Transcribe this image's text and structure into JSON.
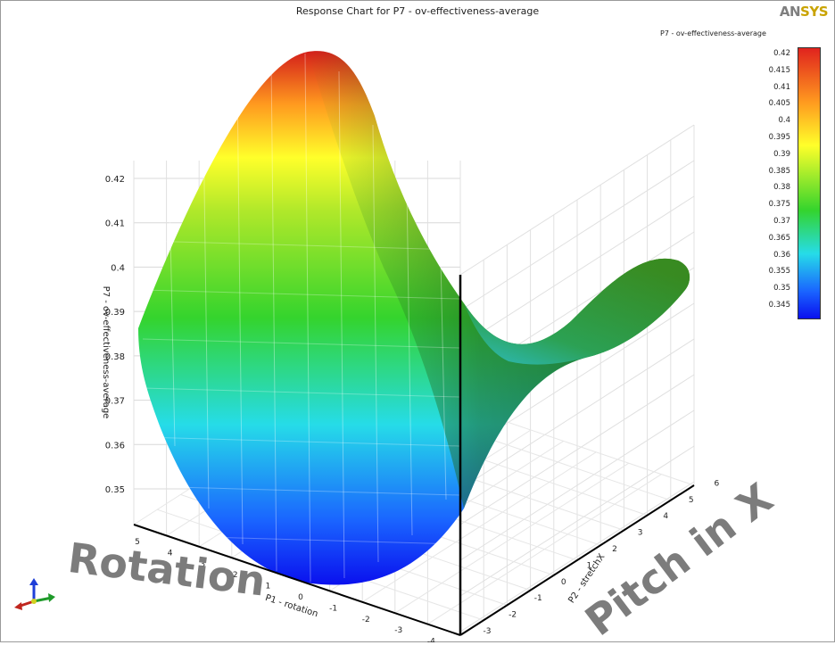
{
  "header": {
    "title": "Response Chart for P7 - ov-effectiveness-average",
    "logo_an": "AN",
    "logo_sys": "SYS"
  },
  "legend": {
    "title": "P7 - ov-effectiveness-average",
    "ticks": [
      "0.42",
      "0.415",
      "0.41",
      "0.405",
      "0.4",
      "0.395",
      "0.39",
      "0.385",
      "0.38",
      "0.375",
      "0.37",
      "0.365",
      "0.36",
      "0.355",
      "0.35",
      "0.345"
    ],
    "colors": [
      "#e0231e",
      "#ff9a1f",
      "#ffff2a",
      "#34d42d",
      "#26dce8",
      "#1a64ff",
      "#0a10ee"
    ]
  },
  "annotations": {
    "rotation": "Rotation",
    "pitch": "Pitch in X"
  },
  "chart_data": {
    "type": "surface",
    "title": "Response Chart for P7 - ov-effectiveness-average",
    "x_axis": {
      "label": "P1 - rotation",
      "ticks": [
        "5",
        "4",
        "3",
        "2",
        "1",
        "0",
        "-1",
        "-2",
        "-3",
        "-4"
      ],
      "range": [
        -5,
        5
      ]
    },
    "y_axis": {
      "label": "P2 - stretchX",
      "ticks": [
        "-3",
        "-2",
        "-1",
        "0",
        "1",
        "2",
        "3",
        "4",
        "5",
        "6"
      ],
      "range": [
        -3,
        6
      ]
    },
    "z_axis": {
      "label": "P7 - ov-effectiveness-average",
      "ticks": [
        "0.35",
        "0.36",
        "0.37",
        "0.38",
        "0.39",
        "0.4",
        "0.41",
        "0.42"
      ],
      "range": [
        0.345,
        0.42
      ]
    },
    "colorbar_range": [
      0.345,
      0.42
    ],
    "surface_notes": "saddle-shaped response surface; maximum ~0.42 at P1 = 5, P2 = -3 edge; minimum ~0.345 near P1 = 0 on front edge"
  }
}
